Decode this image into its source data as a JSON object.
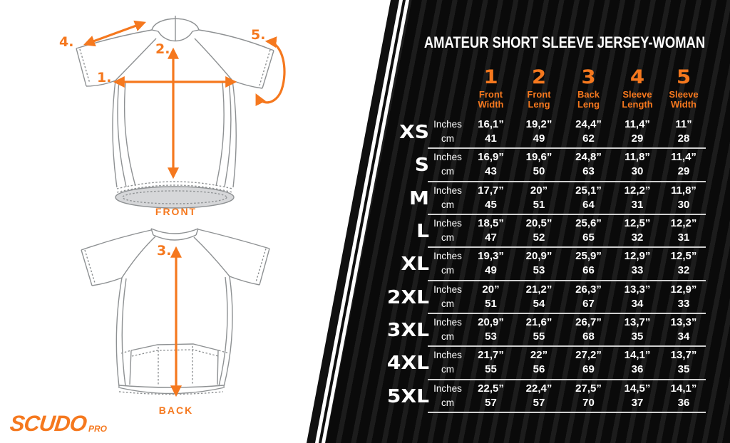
{
  "chart_data": {
    "type": "table",
    "title": "AMATEUR SHORT SLEEVE JERSEY-WOMAN",
    "columns": [
      {
        "num": "1",
        "label": [
          "Front",
          "Width"
        ]
      },
      {
        "num": "2",
        "label": [
          "Front",
          "Leng"
        ]
      },
      {
        "num": "3",
        "label": [
          "Back",
          "Leng"
        ]
      },
      {
        "num": "4",
        "label": [
          "Sleeve",
          "Length"
        ]
      },
      {
        "num": "5",
        "label": [
          "Sleeve",
          "Width"
        ]
      }
    ],
    "unit_rows": [
      "Inches",
      "cm"
    ],
    "rows": [
      {
        "size": "XS",
        "inches": [
          "16,1”",
          "19,2”",
          "24,4”",
          "11,4”",
          "11”"
        ],
        "cm": [
          "41",
          "49",
          "62",
          "29",
          "28"
        ]
      },
      {
        "size": "S",
        "inches": [
          "16,9”",
          "19,6”",
          "24,8”",
          "11,8”",
          "11,4”"
        ],
        "cm": [
          "43",
          "50",
          "63",
          "30",
          "29"
        ]
      },
      {
        "size": "M",
        "inches": [
          "17,7”",
          "20”",
          "25,1”",
          "12,2”",
          "11,8”"
        ],
        "cm": [
          "45",
          "51",
          "64",
          "31",
          "30"
        ]
      },
      {
        "size": "L",
        "inches": [
          "18,5”",
          "20,5”",
          "25,6”",
          "12,5”",
          "12,2”"
        ],
        "cm": [
          "47",
          "52",
          "65",
          "32",
          "31"
        ]
      },
      {
        "size": "XL",
        "inches": [
          "19,3”",
          "20,9”",
          "25,9”",
          "12,9”",
          "12,5”"
        ],
        "cm": [
          "49",
          "53",
          "66",
          "33",
          "32"
        ]
      },
      {
        "size": "2XL",
        "inches": [
          "20”",
          "21,2”",
          "26,3”",
          "13,3”",
          "12,9”"
        ],
        "cm": [
          "51",
          "54",
          "67",
          "34",
          "33"
        ]
      },
      {
        "size": "3XL",
        "inches": [
          "20,9”",
          "21,6”",
          "26,7”",
          "13,7”",
          "13,3”"
        ],
        "cm": [
          "53",
          "55",
          "68",
          "35",
          "34"
        ]
      },
      {
        "size": "4XL",
        "inches": [
          "21,7”",
          "22”",
          "27,2”",
          "14,1”",
          "13,7”"
        ],
        "cm": [
          "55",
          "56",
          "69",
          "36",
          "35"
        ]
      },
      {
        "size": "5XL",
        "inches": [
          "22,5”",
          "22,4”",
          "27,5”",
          "14,5”",
          "14,1”"
        ],
        "cm": [
          "57",
          "57",
          "70",
          "37",
          "36"
        ]
      }
    ]
  },
  "diagram": {
    "front_label": "FRONT",
    "back_label": "BACK",
    "markers": [
      {
        "label": "1."
      },
      {
        "label": "2."
      },
      {
        "label": "3."
      },
      {
        "label": "4."
      },
      {
        "label": "5."
      }
    ]
  },
  "brand": {
    "name": "SCUDO PRO",
    "logo_main": "SCUDO",
    "logo_sub": "PRO"
  },
  "colors": {
    "accent": "#F5781E",
    "panel_bg": "#0A0A0A",
    "panel_stripe": "#1C1C1C",
    "text": "#FFFFFF",
    "separator": "#CFCFCF",
    "hem_fill": "#D6D7D9",
    "outline": "#8E9193"
  }
}
